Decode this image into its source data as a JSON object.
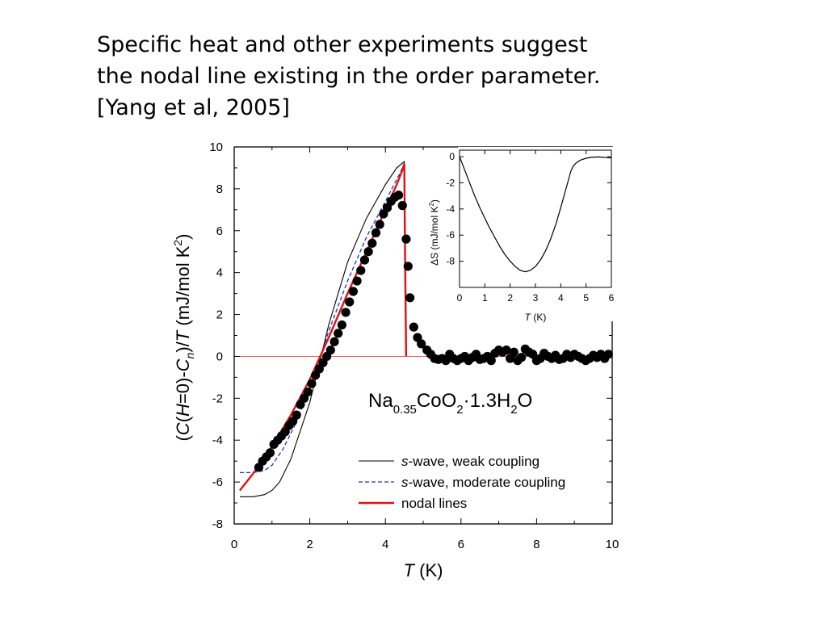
{
  "slide": {
    "headline_lines": [
      "Specific heat and other experiments suggest",
      "the nodal line existing in the order parameter.",
      "[Yang et al, 2005]"
    ]
  },
  "chart_data": [
    {
      "type": "scatter",
      "xlabel": "T (K)",
      "ylabel": "(C(H=0)-Cn)/T (mJ/mol K2)",
      "xlim": [
        0,
        10
      ],
      "ylim": [
        -8,
        10
      ],
      "x_ticks": [
        0,
        2,
        4,
        6,
        8,
        10
      ],
      "y_ticks": [
        -8,
        -6,
        -4,
        -2,
        0,
        2,
        4,
        6,
        8,
        10
      ],
      "annotation": "Na0.35CoO2·1.3H2O",
      "reference_line": {
        "y": 0,
        "color": "#e06060"
      },
      "legend_position": "lower-right",
      "series": [
        {
          "name": "s-wave, weak coupling",
          "style": "line",
          "color": "#000000",
          "x": [
            0.15,
            0.5,
            0.8,
            1.0,
            1.2,
            1.5,
            2.0,
            2.5,
            3.0,
            3.5,
            4.0,
            4.3,
            4.5,
            4.52,
            4.55
          ],
          "y": [
            -6.7,
            -6.7,
            -6.6,
            -6.4,
            -6.0,
            -4.9,
            -2.2,
            1.5,
            4.5,
            6.6,
            8.2,
            9.0,
            9.3,
            5.0,
            0.0
          ]
        },
        {
          "name": "s-wave, moderate coupling",
          "style": "dashed",
          "color": "#1f2fbf",
          "x": [
            0.15,
            0.5,
            0.8,
            1.0,
            1.3,
            1.6,
            2.0,
            2.5,
            3.0,
            3.5,
            4.0,
            4.4,
            4.5,
            4.52,
            4.55
          ],
          "y": [
            -5.55,
            -5.55,
            -5.45,
            -5.2,
            -4.4,
            -3.3,
            -1.5,
            1.2,
            3.6,
            5.7,
            7.4,
            8.8,
            9.2,
            5.0,
            0.0
          ]
        },
        {
          "name": "nodal lines",
          "style": "line",
          "color": "#e01010",
          "x": [
            0.15,
            0.5,
            1.0,
            1.5,
            2.0,
            2.5,
            3.0,
            3.5,
            4.0,
            4.3,
            4.45,
            4.5,
            4.52,
            4.55
          ],
          "y": [
            -6.4,
            -5.6,
            -4.3,
            -2.8,
            -1.1,
            0.9,
            3.0,
            5.0,
            7.0,
            8.2,
            8.9,
            9.2,
            5.0,
            0.0
          ]
        },
        {
          "name": "",
          "style": "points",
          "color": "#000000",
          "x": [
            0.65,
            0.75,
            0.85,
            0.95,
            1.05,
            1.15,
            1.25,
            1.35,
            1.45,
            1.55,
            1.65,
            1.75,
            1.85,
            1.95,
            2.05,
            2.15,
            2.25,
            2.35,
            2.45,
            2.55,
            2.65,
            2.75,
            2.85,
            2.95,
            3.05,
            3.15,
            3.25,
            3.35,
            3.45,
            3.55,
            3.65,
            3.75,
            3.85,
            3.95,
            4.05,
            4.15,
            4.25,
            4.35,
            4.45,
            4.55,
            4.6,
            4.65,
            4.75,
            4.85,
            4.95,
            5.1,
            5.2,
            5.3,
            5.4,
            5.5,
            5.6,
            5.7,
            5.8,
            5.9,
            6.0,
            6.1,
            6.2,
            6.3,
            6.4,
            6.5,
            6.6,
            6.7,
            6.8,
            6.9,
            7.0,
            7.1,
            7.2,
            7.3,
            7.4,
            7.5,
            7.6,
            7.7,
            7.8,
            7.9,
            8.0,
            8.1,
            8.2,
            8.3,
            8.4,
            8.5,
            8.6,
            8.7,
            8.8,
            8.9,
            9.0,
            9.1,
            9.2,
            9.3,
            9.4,
            9.5,
            9.6,
            9.7,
            9.8,
            9.9
          ],
          "y": [
            -5.3,
            -5.0,
            -4.8,
            -4.6,
            -4.2,
            -4.0,
            -3.8,
            -3.6,
            -3.3,
            -3.1,
            -2.8,
            -2.3,
            -2.0,
            -1.7,
            -1.3,
            -0.9,
            -0.6,
            -0.3,
            0.0,
            0.3,
            0.7,
            1.1,
            1.5,
            2.1,
            2.6,
            3.1,
            3.6,
            4.1,
            4.6,
            5.0,
            5.4,
            5.9,
            6.3,
            6.8,
            7.1,
            7.4,
            7.6,
            7.7,
            7.2,
            5.6,
            4.3,
            2.8,
            1.4,
            0.9,
            0.6,
            0.3,
            0.1,
            -0.1,
            -0.15,
            -0.1,
            -0.2,
            0.1,
            -0.1,
            -0.2,
            -0.1,
            0.0,
            -0.2,
            -0.05,
            0.1,
            -0.15,
            -0.1,
            0.0,
            -0.2,
            0.15,
            0.3,
            0.2,
            0.3,
            -0.1,
            0.2,
            -0.2,
            -0.05,
            0.35,
            0.2,
            0.1,
            -0.2,
            -0.1,
            0.15,
            0.0,
            -0.1,
            0.05,
            -0.15,
            -0.1,
            0.1,
            -0.05,
            0.1,
            0.0,
            -0.1,
            -0.2,
            -0.1,
            0.05,
            -0.05,
            0.1,
            -0.1,
            0.1
          ]
        }
      ]
    },
    {
      "type": "line",
      "xlabel": "T (K)",
      "ylabel": "ΔS (mJ/mol K2)",
      "xlim": [
        0,
        6
      ],
      "ylim": [
        -10,
        0.5
      ],
      "x_ticks": [
        0,
        1,
        2,
        3,
        4,
        5,
        6
      ],
      "y_ticks": [
        0,
        -2,
        -4,
        -6,
        -8
      ],
      "series": [
        {
          "name": "",
          "color": "#000000",
          "x": [
            0.0,
            0.2,
            0.4,
            0.6,
            0.8,
            1.0,
            1.2,
            1.4,
            1.6,
            1.8,
            2.0,
            2.2,
            2.4,
            2.6,
            2.8,
            3.0,
            3.2,
            3.4,
            3.6,
            3.8,
            4.0,
            4.2,
            4.4,
            4.5,
            4.6,
            4.7,
            4.8,
            5.0,
            5.2,
            5.5,
            6.0
          ],
          "y": [
            0.0,
            -1.0,
            -2.0,
            -3.0,
            -3.9,
            -4.7,
            -5.5,
            -6.2,
            -6.9,
            -7.5,
            -8.0,
            -8.4,
            -8.7,
            -8.8,
            -8.7,
            -8.4,
            -7.9,
            -7.2,
            -6.3,
            -5.2,
            -3.9,
            -2.5,
            -1.1,
            -0.7,
            -0.5,
            -0.35,
            -0.25,
            -0.12,
            -0.05,
            -0.02,
            -0.1
          ]
        }
      ]
    }
  ]
}
